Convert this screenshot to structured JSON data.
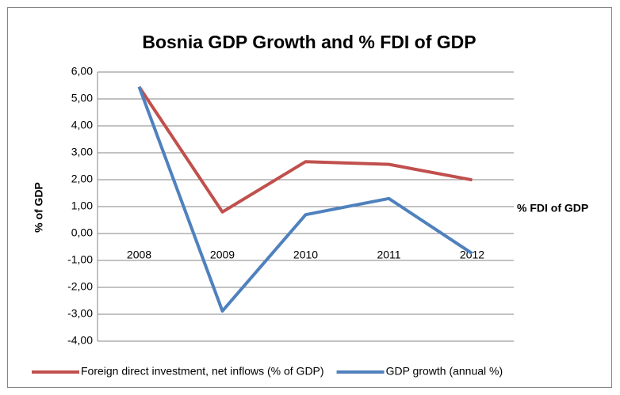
{
  "chart_data": {
    "type": "line",
    "title": "Bosnia GDP Growth and % FDI of GDP",
    "y_label": "% of GDP",
    "x_label": "% FDI of GDP",
    "categories": [
      "2008",
      "2009",
      "2010",
      "2011",
      "2012"
    ],
    "series": [
      {
        "name": "Foreign direct investment, net inflows (% of GDP)",
        "color": "#c0504d",
        "values": [
          5.45,
          0.8,
          2.67,
          2.57,
          1.99
        ]
      },
      {
        "name": "GDP growth (annual %)",
        "color": "#4f81bd",
        "values": [
          5.45,
          -2.88,
          0.7,
          1.3,
          -0.74
        ]
      }
    ],
    "ylim": [
      -4,
      6
    ],
    "yticks": [
      {
        "value": -4,
        "label": "-4,00"
      },
      {
        "value": -3,
        "label": "-3,00"
      },
      {
        "value": -2,
        "label": "-2,00"
      },
      {
        "value": -1,
        "label": "-1,00"
      },
      {
        "value": 0,
        "label": "0,00"
      },
      {
        "value": 1,
        "label": "1,00"
      },
      {
        "value": 2,
        "label": "2,00"
      },
      {
        "value": 3,
        "label": "3,00"
      },
      {
        "value": 4,
        "label": "4,00"
      },
      {
        "value": 5,
        "label": "5,00"
      },
      {
        "value": 6,
        "label": "6,00"
      }
    ],
    "grid": true,
    "legend": "bottom"
  }
}
